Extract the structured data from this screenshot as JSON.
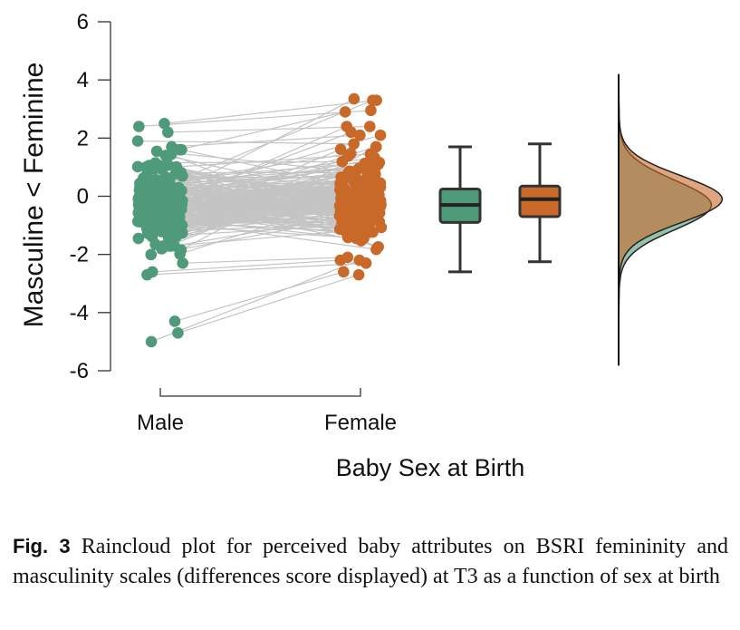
{
  "chart_data": {
    "type": "raincloud",
    "xlabel": "Baby Sex at Birth",
    "ylabel": "Masculine < Feminine",
    "ylim": [
      -6,
      6
    ],
    "yticks": [
      -6,
      -4,
      -2,
      0,
      2,
      4,
      6
    ],
    "categories": [
      "Male",
      "Female"
    ],
    "colors": {
      "male": "#4e9a7a",
      "female": "#c8692a",
      "lines": "#c4c4c4"
    },
    "boxplots": [
      {
        "group": "Male",
        "min": -2.6,
        "q1": -0.9,
        "median": -0.3,
        "q3": 0.25,
        "max": 1.7
      },
      {
        "group": "Female",
        "min": -2.25,
        "q1": -0.7,
        "median": -0.1,
        "q3": 0.35,
        "max": 1.8
      }
    ],
    "notable_points": {
      "male_high": [
        2.5,
        2.4,
        2.2,
        1.9,
        1.7,
        1.6
      ],
      "male_low": [
        -2.6,
        -2.7,
        -4.3,
        -4.7,
        -5.0
      ],
      "female_high": [
        3.3,
        3.35,
        2.4,
        2.2,
        2.1
      ],
      "female_low": [
        -2.2,
        -2.3,
        -2.6,
        -2.7
      ]
    }
  },
  "caption": {
    "label": "Fig. 3",
    "text": "Raincloud plot for perceived baby attributes on BSRI femininity and masculinity scales (differences score displayed) at T3 as a function of sex at birth"
  }
}
